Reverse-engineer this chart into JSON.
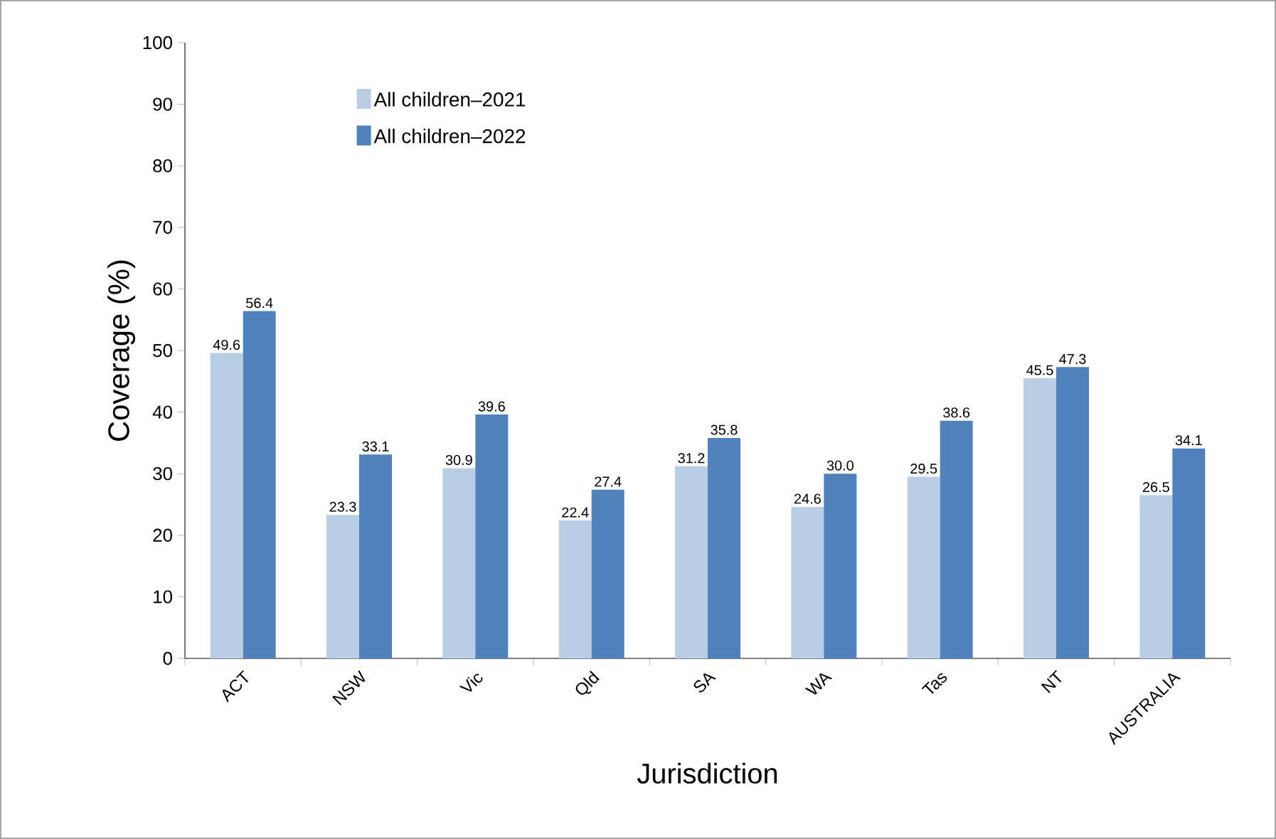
{
  "chart_data": {
    "type": "bar",
    "xlabel": "Jurisdiction",
    "ylabel": "Coverage (%)",
    "categories": [
      "ACT",
      "NSW",
      "Vic",
      "Qld",
      "SA",
      "WA",
      "Tas",
      "NT",
      "AUSTRALIA"
    ],
    "series": [
      {
        "name": "All children–2021",
        "color": "#b9cde5",
        "values": [
          49.6,
          23.3,
          30.9,
          22.4,
          31.2,
          24.6,
          29.5,
          45.5,
          26.5
        ],
        "value_labels": [
          "49.6",
          "23.3",
          "30.9",
          "22.4",
          "31.2",
          "24.6",
          "29.5",
          "45.5",
          "26.5"
        ]
      },
      {
        "name": "All children–2022",
        "color": "#4f81bd",
        "values": [
          56.4,
          33.1,
          39.6,
          27.4,
          35.8,
          30.0,
          38.6,
          47.3,
          34.1
        ],
        "value_labels": [
          "56.4",
          "33.1",
          "39.6",
          "27.4",
          "35.8",
          "30.0",
          "38.6",
          "47.3",
          "34.1"
        ]
      }
    ],
    "ylim": [
      0,
      100
    ],
    "yticks": [
      0,
      10,
      20,
      30,
      40,
      50,
      60,
      70,
      80,
      90,
      100
    ],
    "legend": "top left"
  }
}
